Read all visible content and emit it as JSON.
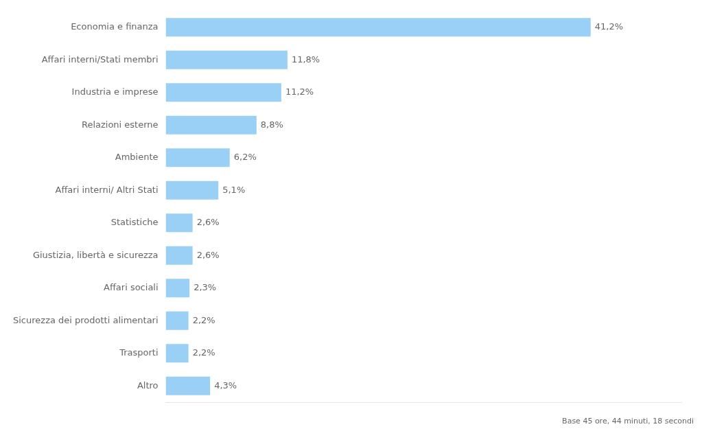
{
  "chart_data": {
    "type": "bar",
    "orientation": "horizontal",
    "categories": [
      "Economia e finanza",
      "Affari interni/Stati membri",
      "Industria e imprese",
      "Relazioni esterne",
      "Ambiente",
      "Affari interni/ Altri Stati",
      "Statistiche",
      "Giustizia, libertà e sicurezza",
      "Affari sociali",
      "Sicurezza dei prodotti alimentari",
      "Trasporti",
      "Altro"
    ],
    "values": [
      41.2,
      11.8,
      11.2,
      8.8,
      6.2,
      5.1,
      2.6,
      2.6,
      2.3,
      2.2,
      2.2,
      4.3
    ],
    "value_labels": [
      "41,2%",
      "11,8%",
      "11,2%",
      "8,8%",
      "6,2%",
      "5,1%",
      "2,6%",
      "2,6%",
      "2,3%",
      "2,2%",
      "2,2%",
      "4,3%"
    ],
    "data_labels": true,
    "xlim": [
      0,
      50
    ],
    "grid": false,
    "tick_labels": "y",
    "annotation": "Base 45 ore, 44 minuti, 18 secondi"
  }
}
